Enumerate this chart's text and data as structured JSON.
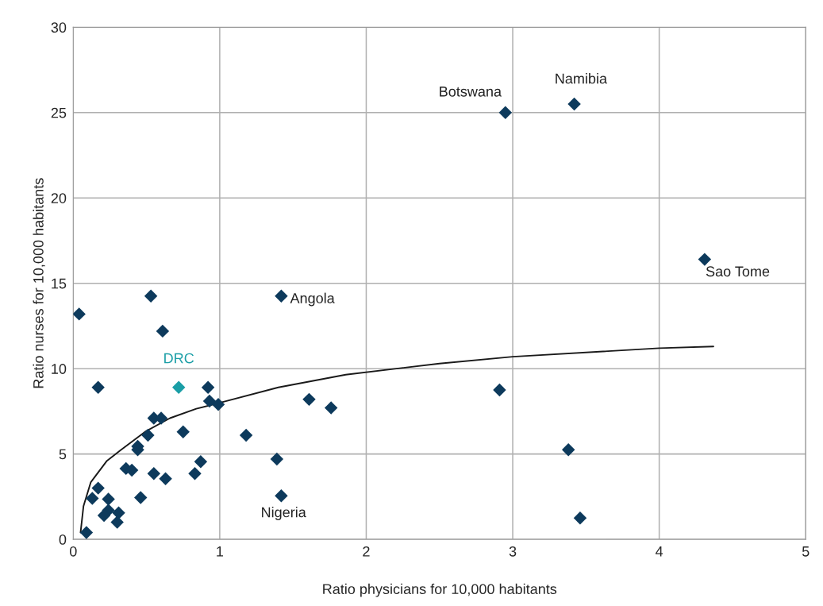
{
  "chart_data": {
    "type": "scatter",
    "xlabel": "Ratio physicians for 10,000 habitants",
    "ylabel": "Ratio nurses for 10,000 habitants",
    "xlim": [
      0,
      5
    ],
    "xticks": [
      0,
      1,
      2,
      3,
      4,
      5
    ],
    "ylim": [
      0,
      30
    ],
    "yticks": [
      0,
      5,
      10,
      15,
      20,
      25,
      30
    ],
    "grid": true,
    "marker": "diamond",
    "series": [
      {
        "color": "#0d3a5c",
        "x": [
          0.04,
          0.53,
          0.61,
          0.17,
          0.92,
          0.93,
          0.99,
          0.55,
          0.6,
          0.75,
          0.51,
          0.44,
          0.44,
          0.36,
          0.4,
          0.55,
          0.63,
          0.83,
          0.87,
          0.46,
          0.17,
          0.13,
          0.24,
          0.24,
          0.21,
          0.31,
          0.3,
          0.09,
          1.18,
          1.39,
          1.42,
          1.61,
          1.76,
          1.42,
          2.95,
          3.42,
          2.91,
          3.38,
          3.46,
          4.31
        ],
        "values": [
          13.2,
          14.25,
          12.2,
          8.9,
          8.9,
          8.1,
          7.9,
          7.1,
          7.1,
          6.3,
          6.1,
          5.45,
          5.25,
          4.15,
          4.05,
          3.85,
          3.55,
          3.85,
          4.55,
          2.45,
          3.0,
          2.4,
          2.35,
          1.7,
          1.4,
          1.55,
          1.0,
          0.4,
          6.1,
          4.7,
          2.55,
          8.2,
          7.7,
          14.25,
          25.0,
          25.5,
          8.75,
          5.25,
          1.25,
          16.4
        ]
      },
      {
        "name": "DRC",
        "color": "#1a9ea6",
        "x": [
          0.72
        ],
        "values": [
          8.9
        ]
      },
      {
        "type": "line",
        "color": "#1a1a1a",
        "marker": "none",
        "x": [
          0.05,
          0.07,
          0.12,
          0.23,
          0.32,
          0.49,
          0.66,
          0.84,
          1.0,
          1.4,
          1.86,
          2.5,
          3.0,
          4.0,
          4.37
        ],
        "values": [
          0.4,
          1.95,
          3.35,
          4.6,
          5.2,
          6.3,
          7.1,
          7.65,
          8.0,
          8.9,
          9.65,
          10.3,
          10.7,
          11.2,
          11.3
        ]
      }
    ],
    "annotations": [
      {
        "text": "Botswana",
        "x": 2.95,
        "y": 25.0
      },
      {
        "text": "Namibia",
        "x": 3.42,
        "y": 25.5
      },
      {
        "text": "Sao Tome",
        "x": 4.31,
        "y": 16.4
      },
      {
        "text": "Angola",
        "x": 1.42,
        "y": 14.25
      },
      {
        "text": "Nigeria",
        "x": 1.42,
        "y": 2.55
      }
    ]
  }
}
